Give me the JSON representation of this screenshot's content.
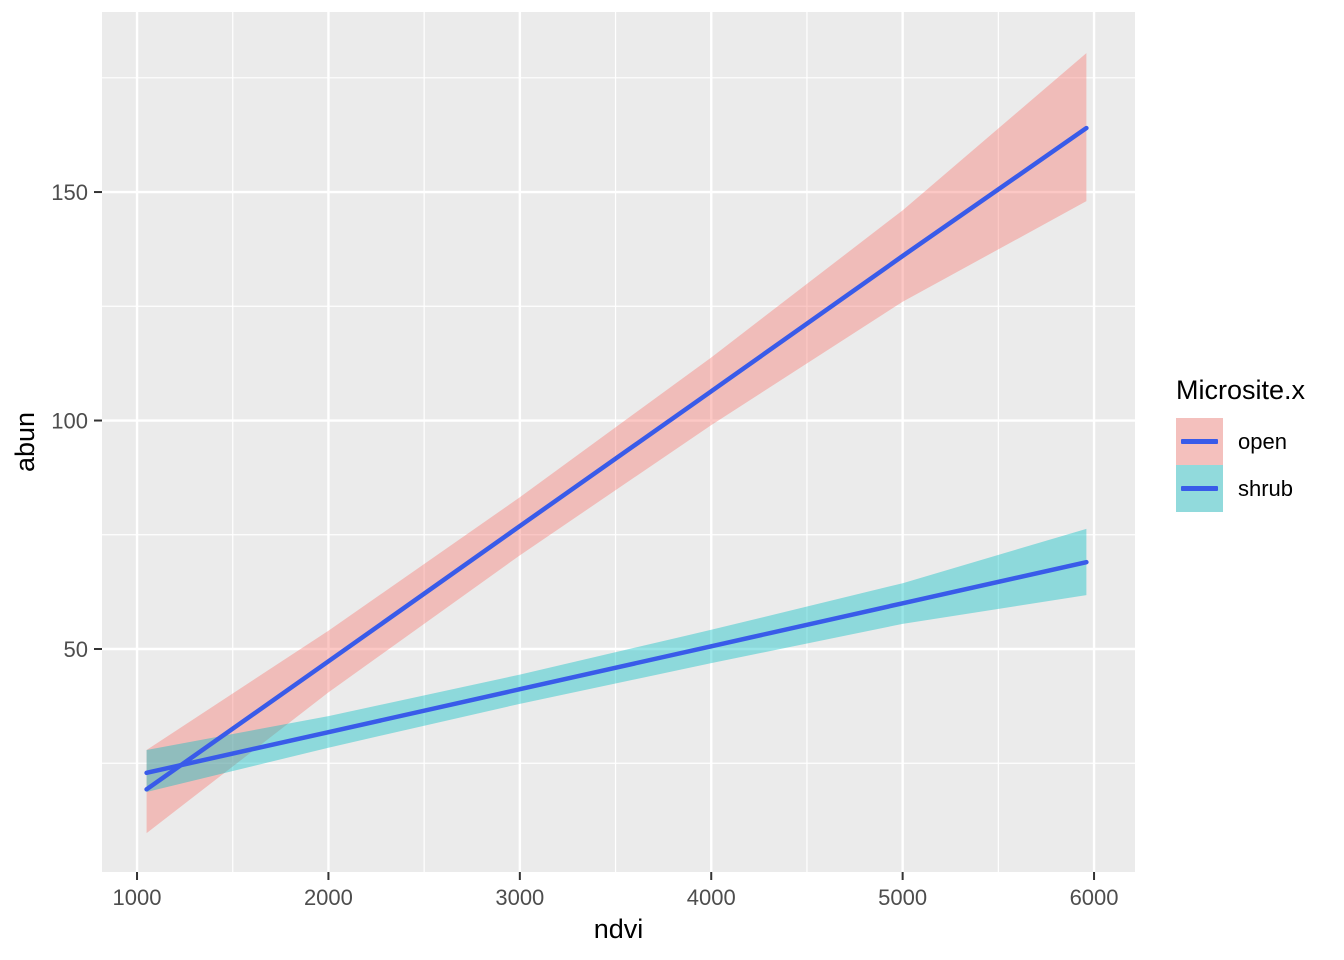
{
  "figure": {
    "background": "#FFFFFF",
    "panel_background": "#EBEBEB",
    "grid_color": "#FFFFFF",
    "tick_mark_color": "#333333",
    "tick_label_color": "#4D4D4D",
    "axis_title_color": "#000000"
  },
  "legend": {
    "title": "Microsite.x",
    "entries": [
      {
        "label": "open",
        "swatch_fill": "#F4C0BD",
        "line_color": "#395BE9"
      },
      {
        "label": "shrub",
        "swatch_fill": "#91DADC",
        "line_color": "#395BE9"
      }
    ]
  },
  "chart_data": {
    "type": "line",
    "title": "",
    "xlabel": "ndvi",
    "ylabel": "abun",
    "x_range": [
      817,
      6214
    ],
    "y_range": [
      1.2,
      189.4
    ],
    "x_major_ticks": [
      1000,
      2000,
      3000,
      4000,
      5000,
      6000
    ],
    "x_minor_ticks": [
      1500,
      2500,
      3500,
      4500,
      5500
    ],
    "y_major_ticks": [
      50,
      100,
      150
    ],
    "y_minor_ticks": [
      25,
      75,
      125,
      175
    ],
    "grid": true,
    "legend_position": "right",
    "legend_title": "Microsite.x",
    "series": [
      {
        "name": "open",
        "x": [
          1050,
          2000,
          3000,
          4000,
          5000,
          5960
        ],
        "y": [
          19.3,
          47.3,
          76.9,
          106.4,
          136.0,
          164.0
        ],
        "ci_lower": [
          9.7,
          40.5,
          70.5,
          99.0,
          126.0,
          148.0
        ],
        "ci_upper": [
          27.9,
          54.0,
          83.2,
          113.8,
          146.0,
          180.4
        ],
        "line_color": "#395BE9",
        "ribbon_fill": "rgba(248,118,109,0.4)"
      },
      {
        "name": "shrub",
        "x": [
          1050,
          2000,
          3000,
          4000,
          5000,
          5960
        ],
        "y": [
          22.9,
          31.8,
          41.2,
          50.6,
          60.0,
          69.0
        ],
        "ci_lower": [
          18.7,
          28.4,
          38.0,
          46.9,
          55.5,
          61.8
        ],
        "ci_upper": [
          27.9,
          35.3,
          44.4,
          54.2,
          64.4,
          76.3
        ],
        "line_color": "#395BE9",
        "ribbon_fill": "rgba(0,191,196,0.4)"
      }
    ]
  }
}
